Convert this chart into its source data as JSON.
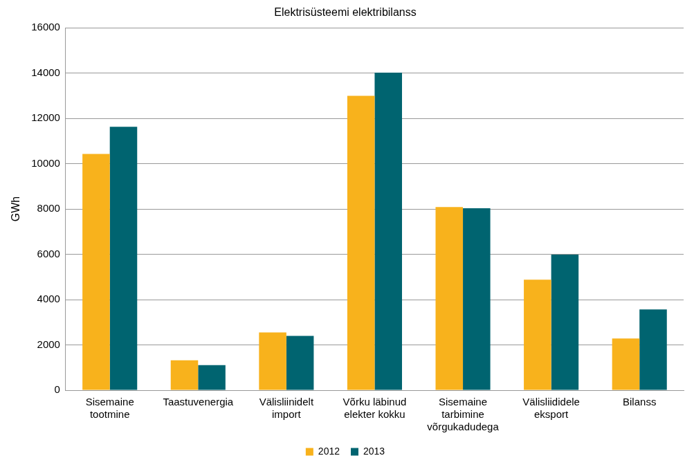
{
  "chart_data": {
    "type": "bar",
    "title": "Elektrisüsteemi elektribilanss",
    "ylabel": "GWh",
    "categories": [
      "Sisemaine tootmine",
      "Taastuvenergia",
      "Välisliinidelt import",
      "Võrku läbinud elekter kokku",
      "Sisemaine tarbimine võrgukadudega",
      "Välisliididele eksport",
      "Bilanss"
    ],
    "series": [
      {
        "name": "2012",
        "color": "#f8b21c",
        "values": [
          10430,
          1320,
          2550,
          13000,
          8090,
          4880,
          2280
        ]
      },
      {
        "name": "2013",
        "color": "#006470",
        "values": [
          11630,
          1110,
          2400,
          14020,
          8030,
          5990,
          3570
        ]
      }
    ],
    "ylim": [
      0,
      16000
    ],
    "yticks": [
      0,
      2000,
      4000,
      6000,
      8000,
      10000,
      12000,
      14000,
      16000
    ],
    "grid": "y",
    "legend": "bottom"
  }
}
